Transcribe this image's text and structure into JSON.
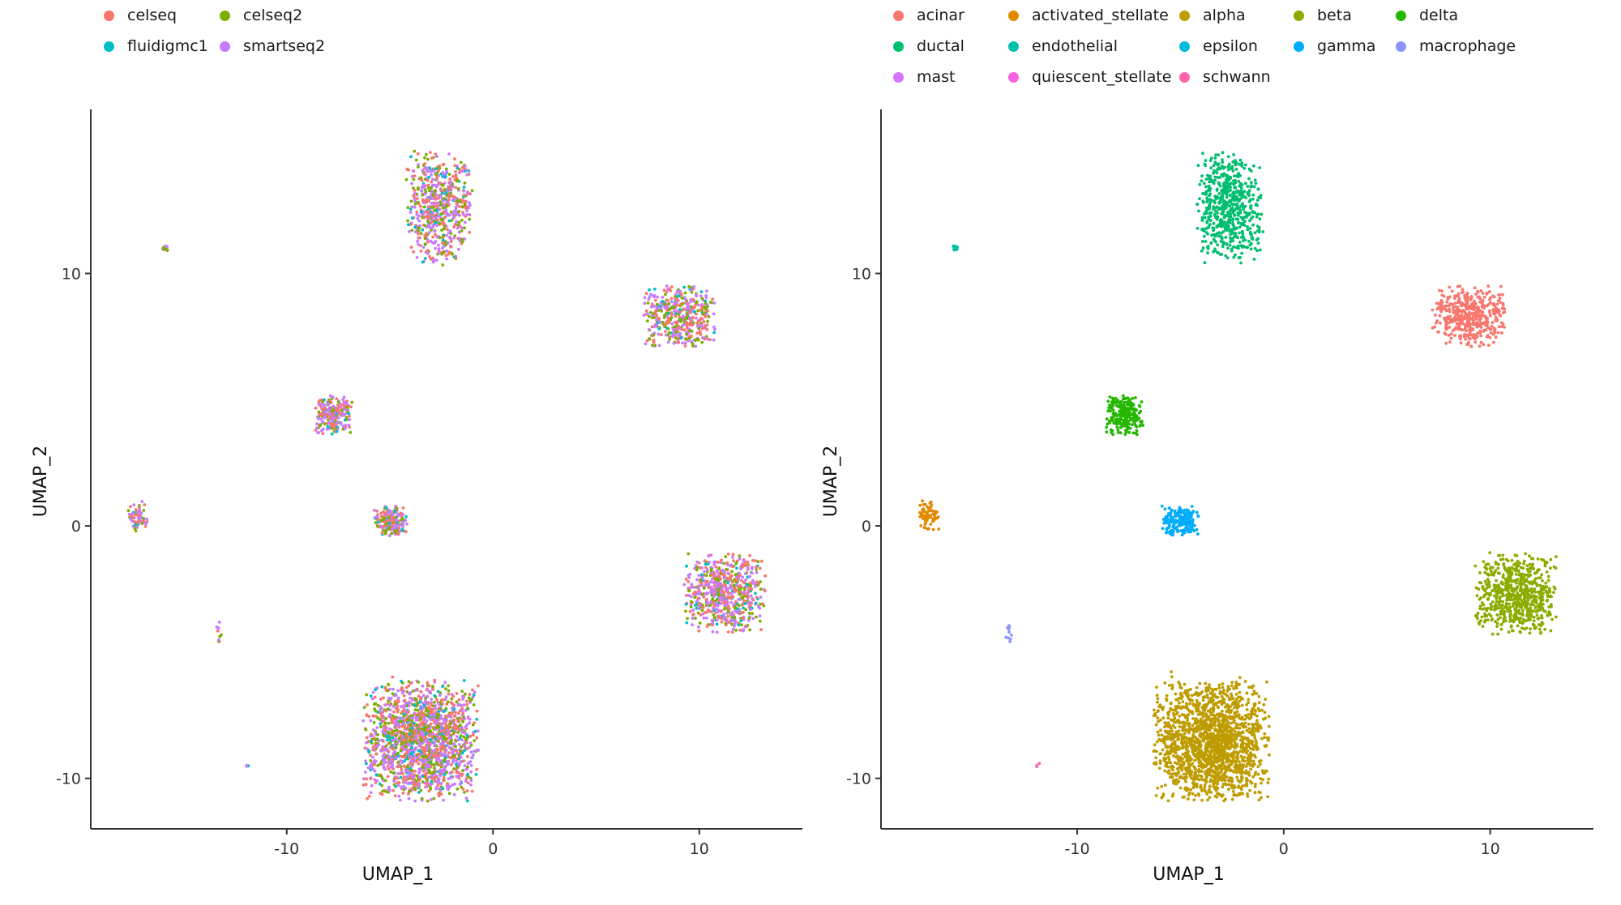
{
  "chart_data": [
    {
      "type": "scatter",
      "xlabel": "UMAP_1",
      "ylabel": "UMAP_2",
      "xlim": [
        -19.5,
        15
      ],
      "ylim": [
        -12,
        16.5
      ],
      "xticks": [
        -10,
        0,
        10
      ],
      "yticks": [
        -10,
        0,
        10
      ],
      "xtick_labels": [
        "-10",
        "0",
        "10"
      ],
      "ytick_labels": [
        "-10",
        "0",
        "10"
      ],
      "grid": false,
      "legend_position": "top-left",
      "legend": {
        "entries": [
          {
            "name": "celseq",
            "color": "#F8766D"
          },
          {
            "name": "celseq2",
            "color": "#7CAE00"
          },
          {
            "name": "fluidigmc1",
            "color": "#00BFC4"
          },
          {
            "name": "smartseq2",
            "color": "#C77CFF"
          }
        ]
      },
      "color_by": "tech",
      "clusters": [
        {
          "name": "alpha",
          "center": [
            -3.5,
            -8.5
          ],
          "spread": [
            2.8,
            2.4
          ],
          "n": 1700
        },
        {
          "name": "beta",
          "center": [
            11.2,
            -2.7
          ],
          "spread": [
            2.0,
            1.6
          ],
          "n": 650
        },
        {
          "name": "ductal",
          "center": [
            -2.6,
            12.6
          ],
          "spread": [
            1.6,
            2.2
          ],
          "n": 600
        },
        {
          "name": "acinar",
          "center": [
            9.0,
            8.3
          ],
          "spread": [
            1.8,
            1.2
          ],
          "n": 450
        },
        {
          "name": "delta",
          "center": [
            -7.7,
            4.4
          ],
          "spread": [
            0.9,
            0.8
          ],
          "n": 230
        },
        {
          "name": "gamma",
          "center": [
            -5.0,
            0.2
          ],
          "spread": [
            0.9,
            0.6
          ],
          "n": 200
        },
        {
          "name": "activated_stellate",
          "center": [
            -17.2,
            0.4
          ],
          "spread": [
            0.5,
            0.6
          ],
          "n": 70
        },
        {
          "name": "endothelial",
          "center": [
            -15.9,
            11.0
          ],
          "spread": [
            0.15,
            0.1
          ],
          "n": 14
        },
        {
          "name": "macrophage",
          "center": [
            -13.3,
            -4.2
          ],
          "spread": [
            0.15,
            0.6
          ],
          "n": 10
        },
        {
          "name": "schwann",
          "center": [
            -11.9,
            -9.5
          ],
          "spread": [
            0.1,
            0.1
          ],
          "n": 3
        }
      ]
    },
    {
      "type": "scatter",
      "xlabel": "UMAP_1",
      "ylabel": "UMAP_2",
      "xlim": [
        -19.5,
        15
      ],
      "ylim": [
        -12,
        16.5
      ],
      "xticks": [
        -10,
        0,
        10
      ],
      "yticks": [
        -10,
        0,
        10
      ],
      "xtick_labels": [
        "-10",
        "0",
        "10"
      ],
      "ytick_labels": [
        "-10",
        "0",
        "10"
      ],
      "grid": false,
      "legend_position": "top-left",
      "legend": {
        "entries": [
          {
            "name": "acinar",
            "color": "#F8766D"
          },
          {
            "name": "activated_stellate",
            "color": "#E18A00"
          },
          {
            "name": "alpha",
            "color": "#BE9C00"
          },
          {
            "name": "beta",
            "color": "#8CAB00"
          },
          {
            "name": "delta",
            "color": "#24B700"
          },
          {
            "name": "ductal",
            "color": "#00BE70"
          },
          {
            "name": "endothelial",
            "color": "#00C1AB"
          },
          {
            "name": "epsilon",
            "color": "#00BBDA"
          },
          {
            "name": "gamma",
            "color": "#00ACFC"
          },
          {
            "name": "macrophage",
            "color": "#8B93FF"
          },
          {
            "name": "mast",
            "color": "#D575FE"
          },
          {
            "name": "quiescent_stellate",
            "color": "#F962DD"
          },
          {
            "name": "schwann",
            "color": "#FF65AC"
          }
        ]
      },
      "color_by": "celltype",
      "clusters": [
        {
          "name": "alpha",
          "center": [
            -3.5,
            -8.5
          ],
          "spread": [
            2.8,
            2.4
          ],
          "n": 1700
        },
        {
          "name": "beta",
          "center": [
            11.2,
            -2.7
          ],
          "spread": [
            2.0,
            1.6
          ],
          "n": 650
        },
        {
          "name": "ductal",
          "center": [
            -2.6,
            12.6
          ],
          "spread": [
            1.6,
            2.2
          ],
          "n": 600
        },
        {
          "name": "acinar",
          "center": [
            9.0,
            8.3
          ],
          "spread": [
            1.8,
            1.2
          ],
          "n": 450
        },
        {
          "name": "delta",
          "center": [
            -7.7,
            4.4
          ],
          "spread": [
            0.9,
            0.8
          ],
          "n": 230
        },
        {
          "name": "gamma",
          "center": [
            -5.0,
            0.2
          ],
          "spread": [
            0.9,
            0.6
          ],
          "n": 200
        },
        {
          "name": "activated_stellate",
          "center": [
            -17.2,
            0.4
          ],
          "spread": [
            0.5,
            0.6
          ],
          "n": 70
        },
        {
          "name": "endothelial",
          "center": [
            -15.9,
            11.0
          ],
          "spread": [
            0.15,
            0.1
          ],
          "n": 14
        },
        {
          "name": "macrophage",
          "center": [
            -13.3,
            -4.2
          ],
          "spread": [
            0.15,
            0.6
          ],
          "n": 10
        },
        {
          "name": "schwann",
          "center": [
            -11.9,
            -9.5
          ],
          "spread": [
            0.1,
            0.1
          ],
          "n": 3
        }
      ]
    }
  ]
}
